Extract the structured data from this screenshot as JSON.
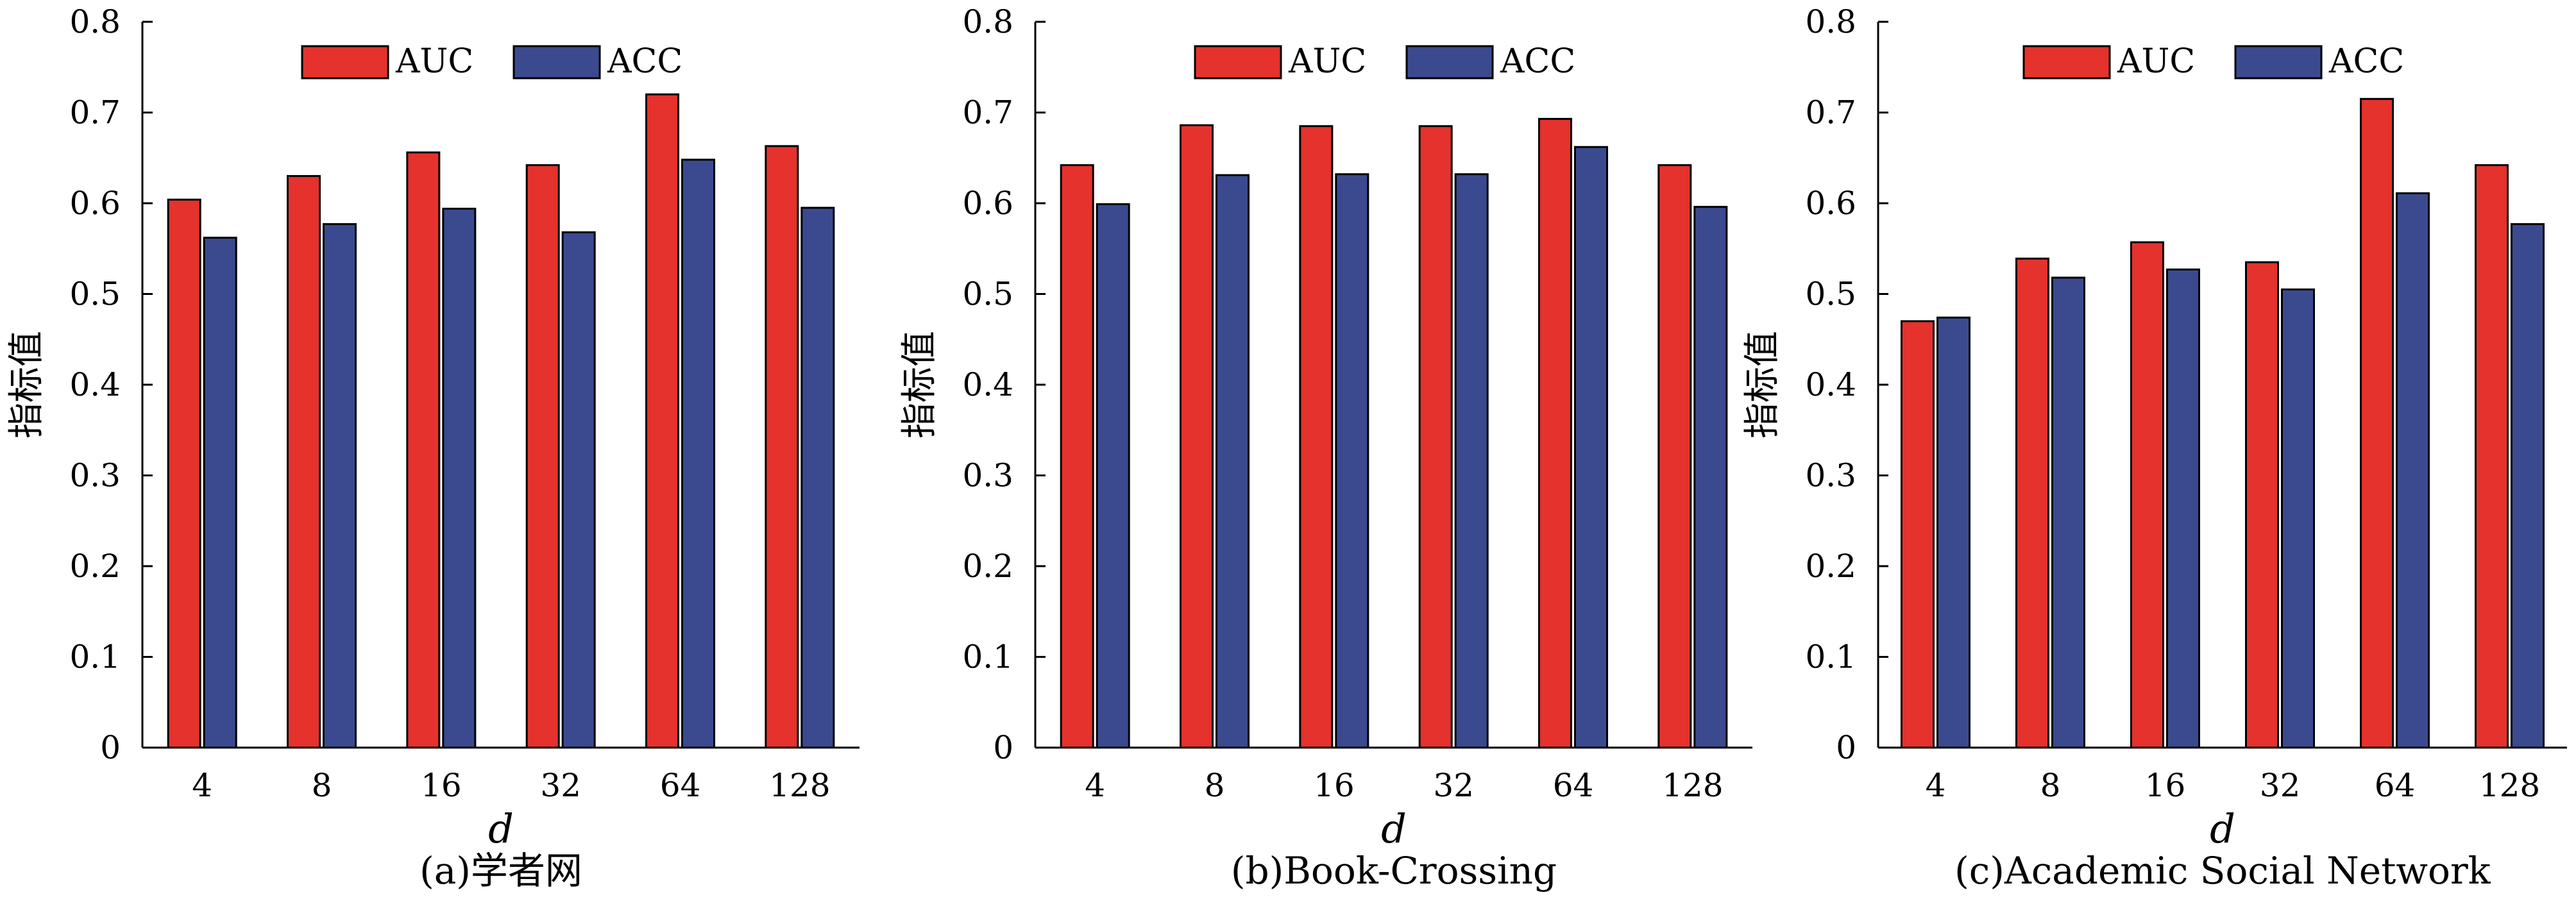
{
  "colors": {
    "auc": "#e5322d",
    "acc": "#3b4a8f",
    "axis": "#000000"
  },
  "chart_data": [
    {
      "type": "bar",
      "caption": "(a)学者网",
      "xlabel": "d",
      "ylabel": "指标值",
      "categories": [
        "4",
        "8",
        "16",
        "32",
        "64",
        "128"
      ],
      "ylim": [
        0,
        0.8
      ],
      "yticks": [
        "0",
        "0.1",
        "0.2",
        "0.3",
        "0.4",
        "0.5",
        "0.6",
        "0.7",
        "0.8"
      ],
      "legend_position": "top",
      "series": [
        {
          "name": "AUC",
          "values": [
            0.604,
            0.63,
            0.656,
            0.642,
            0.72,
            0.663
          ]
        },
        {
          "name": "ACC",
          "values": [
            0.562,
            0.577,
            0.594,
            0.568,
            0.648,
            0.595
          ]
        }
      ]
    },
    {
      "type": "bar",
      "caption": "(b)Book-Crossing",
      "xlabel": "d",
      "ylabel": "指标值",
      "categories": [
        "4",
        "8",
        "16",
        "32",
        "64",
        "128"
      ],
      "ylim": [
        0,
        0.8
      ],
      "yticks": [
        "0",
        "0.1",
        "0.2",
        "0.3",
        "0.4",
        "0.5",
        "0.6",
        "0.7",
        "0.8"
      ],
      "legend_position": "top",
      "series": [
        {
          "name": "AUC",
          "values": [
            0.642,
            0.686,
            0.685,
            0.685,
            0.693,
            0.642
          ]
        },
        {
          "name": "ACC",
          "values": [
            0.599,
            0.631,
            0.632,
            0.632,
            0.662,
            0.596
          ]
        }
      ]
    },
    {
      "type": "bar",
      "caption": "(c)Academic Social Network",
      "xlabel": "d",
      "ylabel": "指标值",
      "categories": [
        "4",
        "8",
        "16",
        "32",
        "64",
        "128"
      ],
      "ylim": [
        0,
        0.8
      ],
      "yticks": [
        "0",
        "0.1",
        "0.2",
        "0.3",
        "0.4",
        "0.5",
        "0.6",
        "0.7",
        "0.8"
      ],
      "legend_position": "top",
      "series": [
        {
          "name": "AUC",
          "values": [
            0.47,
            0.539,
            0.557,
            0.535,
            0.715,
            0.642
          ]
        },
        {
          "name": "ACC",
          "values": [
            0.474,
            0.518,
            0.527,
            0.505,
            0.611,
            0.577
          ]
        }
      ]
    }
  ]
}
